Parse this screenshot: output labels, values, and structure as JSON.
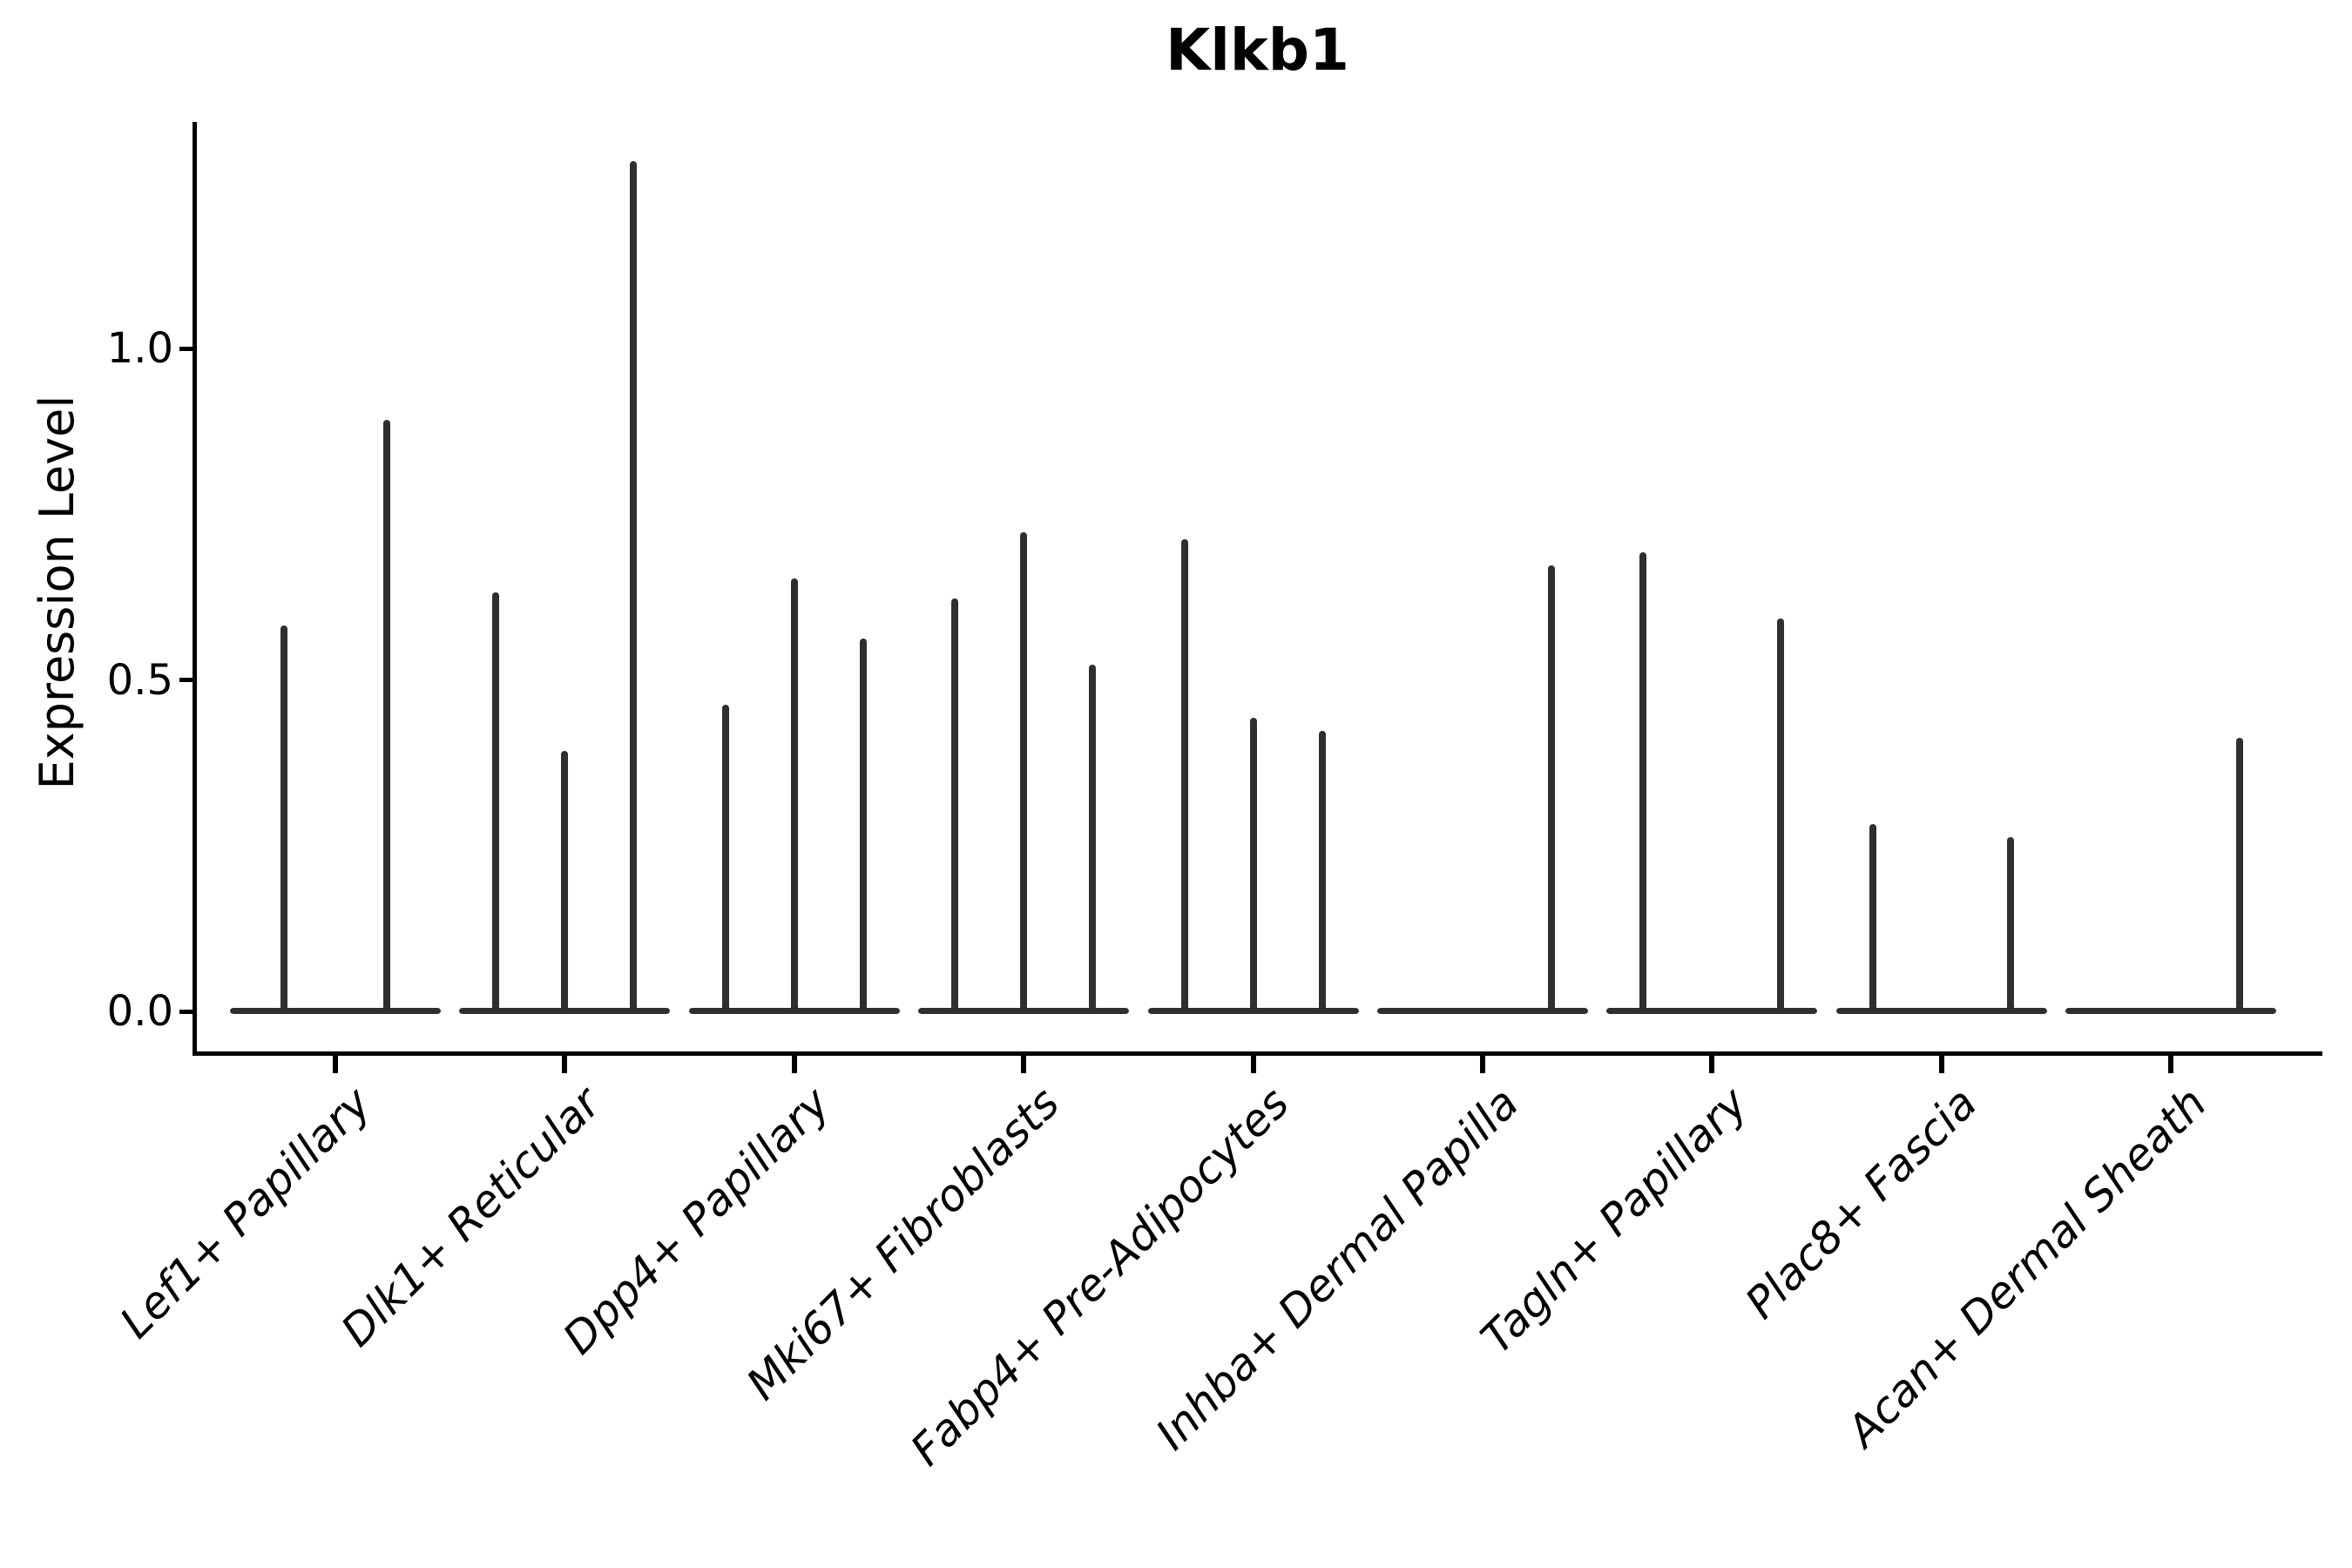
{
  "chart_data": {
    "type": "violin",
    "title": "Klkb1",
    "xlabel": "",
    "ylabel": "Expression Level",
    "ylim": [
      0,
      1.34
    ],
    "yticks": [
      0.0,
      0.5,
      1.0
    ],
    "ytick_labels": [
      "0.0",
      "0.5",
      "1.0"
    ],
    "grid": false,
    "legend": "none",
    "x_tick_rotation": 45,
    "categories": [
      "Lef1+ Papillary",
      "Dlk1+ Reticular",
      "Dpp4+ Papillary",
      "Mki67+ Fibroblasts",
      "Fabp4+ Pre-Adipocytes",
      "Inhba+ Dermal Papilla",
      "Tagln+ Papillary",
      "Plac8+ Fascia",
      "Acan+ Dermal Sheath"
    ],
    "groups": [
      {
        "label": "Lef1+ Papillary",
        "sub_violin_max": [
          0.58,
          0.89
        ]
      },
      {
        "label": "Dlk1+ Reticular",
        "sub_violin_max": [
          0.63,
          0.39,
          1.28
        ]
      },
      {
        "label": "Dpp4+ Papillary",
        "sub_violin_max": [
          0.46,
          0.65,
          0.56
        ]
      },
      {
        "label": "Mki67+ Fibroblasts",
        "sub_violin_max": [
          0.62,
          0.72,
          0.52
        ]
      },
      {
        "label": "Fabp4+ Pre-Adipocytes",
        "sub_violin_max": [
          0.71,
          0.44,
          0.42
        ]
      },
      {
        "label": "Inhba+ Dermal Papilla",
        "sub_violin_max": [
          0,
          0,
          0.67
        ]
      },
      {
        "label": "Tagln+ Papillary",
        "sub_violin_max": [
          0.69,
          0,
          0.59
        ]
      },
      {
        "label": "Plac8+ Fascia",
        "sub_violin_max": [
          0.28,
          0,
          0.26
        ]
      },
      {
        "label": "Acan+ Dermal Sheath",
        "sub_violin_max": [
          0,
          0,
          0.41
        ]
      }
    ],
    "colors": {
      "ink": "#2f2f2f",
      "axis": "#000000",
      "background": "#ffffff"
    }
  }
}
